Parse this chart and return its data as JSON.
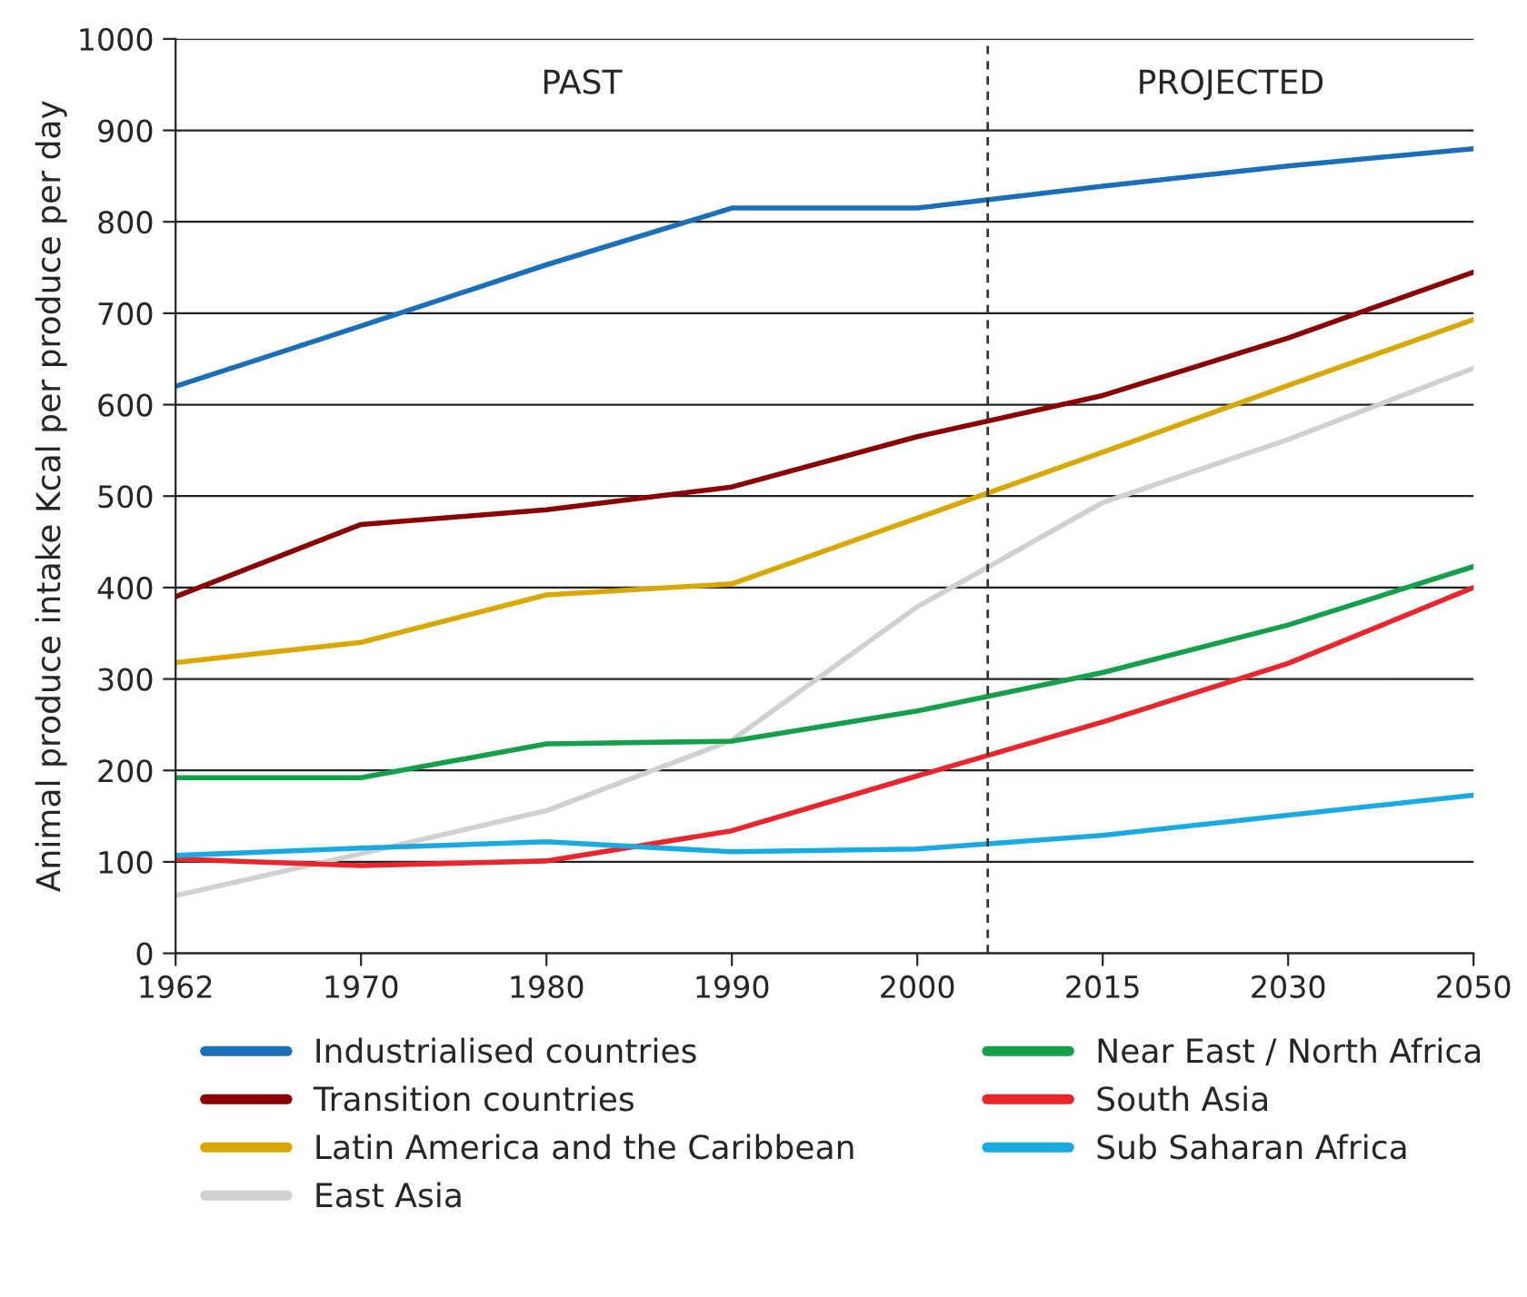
{
  "chart_data": {
    "type": "line",
    "ylabel": "Animal produce intake Kcal per produce per day",
    "categories": [
      "1962",
      "1970",
      "1980",
      "1990",
      "2000",
      "2015",
      "2030",
      "2050"
    ],
    "ylim": [
      0,
      1000
    ],
    "yticks": [
      0,
      100,
      200,
      300,
      400,
      500,
      600,
      700,
      800,
      900,
      1000
    ],
    "grid": "y",
    "legend": "bottom",
    "marker": "none",
    "line_style": "solid",
    "annotations": [
      "PAST",
      "PROJECTED"
    ],
    "series": [
      {
        "name": "Industrialised countries",
        "color": "#1a6fb8",
        "values": [
          620,
          686,
          753,
          815,
          815,
          839,
          861,
          880
        ]
      },
      {
        "name": "Transition countries",
        "color": "#8b0000",
        "values": [
          390,
          469,
          485,
          510,
          565,
          610,
          673,
          745
        ]
      },
      {
        "name": "Latin America and the Caribbean",
        "color": "#d9a800",
        "values": [
          318,
          340,
          392,
          404,
          476,
          548,
          621,
          693
        ]
      },
      {
        "name": "East Asia",
        "color": "#d0d0d0",
        "values": [
          63,
          109,
          156,
          233,
          379,
          493,
          562,
          640
        ]
      },
      {
        "name": "Near East / North Africa",
        "color": "#14a04a",
        "values": [
          192,
          192,
          229,
          232,
          265,
          307,
          359,
          423
        ]
      },
      {
        "name": "South Asia",
        "color": "#e8262b",
        "values": [
          103,
          96,
          101,
          134,
          194,
          253,
          317,
          400
        ]
      },
      {
        "name": "Sub Saharan Africa",
        "color": "#1aa9e0",
        "values": [
          107,
          115,
          122,
          111,
          114,
          129,
          151,
          173
        ]
      }
    ]
  }
}
